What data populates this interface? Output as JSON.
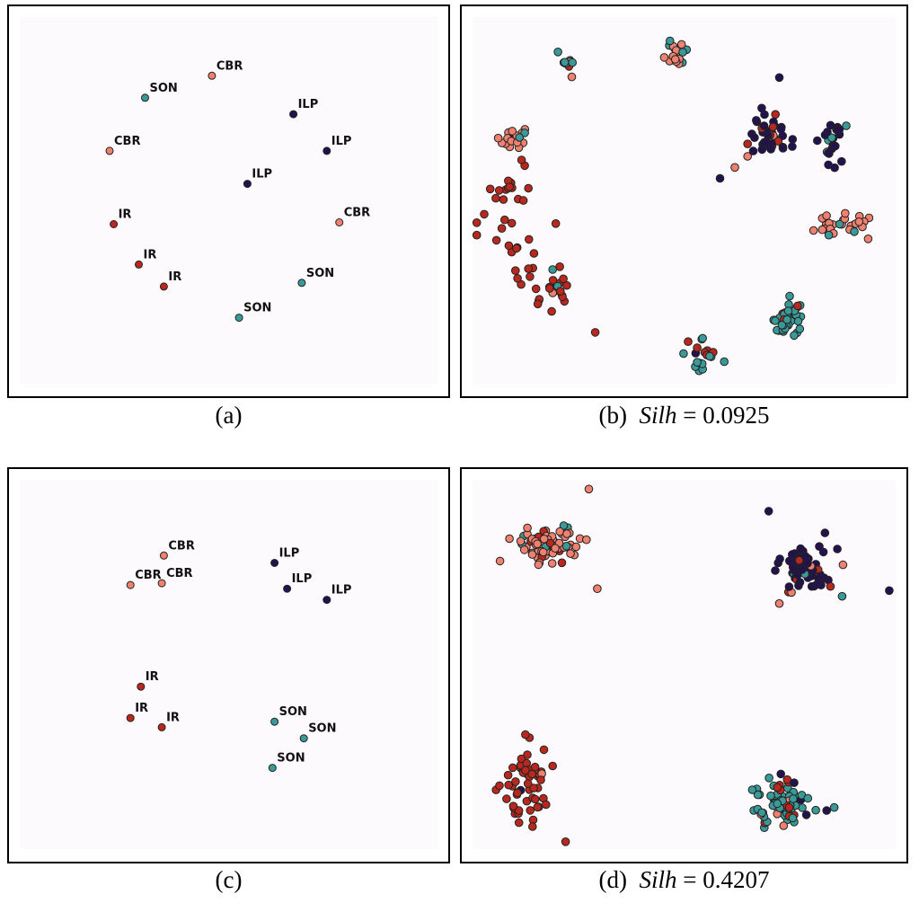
{
  "colors": {
    "CBR": "#f08070",
    "IR": "#b8281e",
    "ILP": "#24124e",
    "SON": "#3a9a98",
    "plot_bg": "#fcfafc",
    "edge": "#222222"
  },
  "captions": {
    "a": "(a)",
    "b": {
      "tag": "(b)",
      "metric": "Silh",
      "eq": " = 0.0925"
    },
    "c": "(c)",
    "d": {
      "tag": "(d)",
      "metric": "Silh",
      "eq": " = 0.4207"
    }
  },
  "chart_data": [
    {
      "type": "scatter",
      "id": "a",
      "xlim": [
        0,
        100
      ],
      "ylim": [
        0,
        100
      ],
      "points": [
        {
          "x": 46.0,
          "y": 84.0,
          "label": "CBR"
        },
        {
          "x": 30.0,
          "y": 78.0,
          "label": "SON"
        },
        {
          "x": 65.5,
          "y": 73.5,
          "label": "ILP"
        },
        {
          "x": 73.5,
          "y": 63.5,
          "label": "ILP"
        },
        {
          "x": 21.5,
          "y": 63.5,
          "label": "CBR"
        },
        {
          "x": 54.5,
          "y": 54.5,
          "label": "ILP"
        },
        {
          "x": 76.5,
          "y": 44.0,
          "label": "CBR"
        },
        {
          "x": 22.5,
          "y": 43.5,
          "label": "IR"
        },
        {
          "x": 28.5,
          "y": 32.5,
          "label": "IR"
        },
        {
          "x": 67.5,
          "y": 27.5,
          "label": "SON"
        },
        {
          "x": 34.5,
          "y": 26.5,
          "label": "IR"
        },
        {
          "x": 52.5,
          "y": 18.0,
          "label": "SON"
        }
      ]
    },
    {
      "type": "scatter",
      "id": "b",
      "xlim": [
        0,
        100
      ],
      "ylim": [
        0,
        100
      ],
      "clusters": [
        {
          "cx": 48.5,
          "cy": 90.0,
          "sx": 1.4,
          "sy": 2.5,
          "n": 18,
          "mix": {
            "CBR": 13,
            "SON": 5
          }
        },
        {
          "cx": 22.5,
          "cy": 87.5,
          "sx": 1.8,
          "sy": 1.6,
          "n": 10,
          "mix": {
            "SON": 7,
            "CBR": 2,
            "IR": 1
          }
        },
        {
          "cx": 10.0,
          "cy": 67.5,
          "sx": 2.4,
          "sy": 1.4,
          "n": 18,
          "mix": {
            "CBR": 15,
            "SON": 2,
            "ILP": 1
          }
        },
        {
          "cx": 69.5,
          "cy": 68.0,
          "sx": 2.3,
          "sy": 3.0,
          "n": 40,
          "mix": {
            "ILP": 30,
            "IR": 8,
            "CBR": 2
          }
        },
        {
          "cx": 85.0,
          "cy": 66.5,
          "sx": 1.6,
          "sy": 3.5,
          "n": 22,
          "mix": {
            "ILP": 18,
            "SON": 4
          }
        },
        {
          "cx": 88.0,
          "cy": 43.5,
          "sx": 3.0,
          "sy": 1.8,
          "n": 26,
          "mix": {
            "CBR": 22,
            "SON": 4
          }
        },
        {
          "cx": 9.5,
          "cy": 46.0,
          "sx": 4.0,
          "sy": 6.0,
          "n": 30,
          "mix": {
            "IR": 30
          }
        },
        {
          "cx": 19.0,
          "cy": 26.5,
          "sx": 4.0,
          "sy": 3.0,
          "n": 26,
          "mix": {
            "IR": 23,
            "SON": 2,
            "CBR": 1
          }
        },
        {
          "cx": 74.5,
          "cy": 18.0,
          "sx": 1.8,
          "sy": 3.0,
          "n": 36,
          "mix": {
            "SON": 32,
            "IR": 4
          }
        },
        {
          "cx": 54.5,
          "cy": 8.0,
          "sx": 2.5,
          "sy": 2.0,
          "n": 18,
          "mix": {
            "SON": 11,
            "IR": 6,
            "ILP": 1
          }
        }
      ],
      "outliers": [
        {
          "x": 72.5,
          "y": 83.5,
          "label": "ILP"
        },
        {
          "x": 58.5,
          "y": 56.0,
          "label": "ILP"
        },
        {
          "x": 62.0,
          "y": 59.0,
          "label": "CBR"
        },
        {
          "x": 65.0,
          "y": 62.0,
          "label": "CBR"
        },
        {
          "x": 93.5,
          "y": 39.5,
          "label": "CBR"
        },
        {
          "x": 29.0,
          "y": 14.0,
          "label": "IR"
        },
        {
          "x": 59.5,
          "y": 6.0,
          "label": "SON"
        }
      ]
    },
    {
      "type": "scatter",
      "id": "c",
      "xlim": [
        0,
        100
      ],
      "ylim": [
        0,
        100
      ],
      "points": [
        {
          "x": 34.5,
          "y": 79.5,
          "label": "CBR"
        },
        {
          "x": 61.0,
          "y": 77.5,
          "label": "ILP"
        },
        {
          "x": 26.5,
          "y": 71.5,
          "label": "CBR"
        },
        {
          "x": 34.0,
          "y": 72.0,
          "label": "CBR"
        },
        {
          "x": 64.0,
          "y": 70.5,
          "label": "ILP"
        },
        {
          "x": 73.5,
          "y": 67.5,
          "label": "ILP"
        },
        {
          "x": 29.0,
          "y": 44.0,
          "label": "IR"
        },
        {
          "x": 26.5,
          "y": 35.5,
          "label": "IR"
        },
        {
          "x": 34.0,
          "y": 33.0,
          "label": "IR"
        },
        {
          "x": 61.0,
          "y": 34.5,
          "label": "SON"
        },
        {
          "x": 68.0,
          "y": 30.0,
          "label": "SON"
        },
        {
          "x": 60.5,
          "y": 22.0,
          "label": "SON"
        }
      ]
    },
    {
      "type": "scatter",
      "id": "d",
      "xlim": [
        0,
        100
      ],
      "ylim": [
        0,
        100
      ],
      "clusters": [
        {
          "cx": 17.0,
          "cy": 82.5,
          "sx": 4.0,
          "sy": 2.5,
          "n": 75,
          "mix": {
            "CBR": 55,
            "IR": 12,
            "SON": 8
          }
        },
        {
          "cx": 79.5,
          "cy": 76.0,
          "sx": 3.5,
          "sy": 3.5,
          "n": 70,
          "mix": {
            "ILP": 55,
            "IR": 8,
            "CBR": 4,
            "SON": 3
          }
        },
        {
          "cx": 12.5,
          "cy": 17.5,
          "sx": 3.5,
          "sy": 4.5,
          "n": 55,
          "mix": {
            "IR": 52,
            "ILP": 2,
            "CBR": 1
          }
        },
        {
          "cx": 73.0,
          "cy": 12.5,
          "sx": 3.5,
          "sy": 3.0,
          "n": 80,
          "mix": {
            "SON": 55,
            "IR": 12,
            "CBR": 8,
            "ILP": 5
          }
        }
      ],
      "outliers": [
        {
          "x": 27.5,
          "y": 97.5,
          "label": "CBR"
        },
        {
          "x": 6.5,
          "y": 78.0,
          "label": "CBR"
        },
        {
          "x": 29.5,
          "y": 70.5,
          "label": "CBR"
        },
        {
          "x": 70.0,
          "y": 91.5,
          "label": "ILP"
        },
        {
          "x": 98.5,
          "y": 70.0,
          "label": "ILP"
        },
        {
          "x": 72.5,
          "y": 66.5,
          "label": "CBR"
        },
        {
          "x": 12.5,
          "y": 31.0,
          "label": "IR"
        },
        {
          "x": 22.0,
          "y": 2.0,
          "label": "IR"
        }
      ]
    }
  ]
}
